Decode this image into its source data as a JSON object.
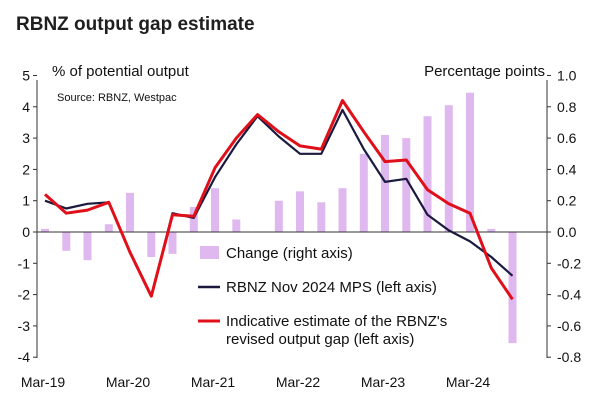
{
  "chart_data": {
    "type": "bar+line",
    "title": "RBNZ output gap estimate",
    "ylabel_left": "% of potential output",
    "ylabel_right": "Percentage points",
    "source": "Source: RBNZ, Westpac",
    "left_axis": {
      "ylim": [
        -4,
        5
      ],
      "ticks": [
        "5",
        "4",
        "3",
        "2",
        "1",
        "0",
        "-1",
        "-2",
        "-3",
        "-4"
      ]
    },
    "right_axis": {
      "ylim": [
        -0.8,
        1.0
      ],
      "ticks": [
        "1.0",
        "0.8",
        "0.6",
        "0.4",
        "0.2",
        "0.0",
        "-0.2",
        "-0.4",
        "-0.6",
        "-0.8"
      ]
    },
    "x_tick_labels": [
      {
        "label": "Mar-19",
        "index": 0
      },
      {
        "label": "Mar-20",
        "index": 4
      },
      {
        "label": "Mar-21",
        "index": 8
      },
      {
        "label": "Mar-22",
        "index": 12
      },
      {
        "label": "Mar-23",
        "index": 16
      },
      {
        "label": "Mar-24",
        "index": 20
      }
    ],
    "quarters": 23,
    "series": [
      {
        "name": "Change (right axis)",
        "kind": "bar",
        "axis": "right",
        "color": "#e0b8f0",
        "values": [
          0.02,
          -0.12,
          -0.18,
          0.05,
          0.25,
          -0.16,
          -0.14,
          0.16,
          0.28,
          0.08,
          0,
          0.2,
          0.26,
          0.19,
          0.28,
          0.5,
          0.62,
          0.6,
          0.74,
          0.81,
          0.89,
          0.02,
          -0.71
        ]
      },
      {
        "name": "RBNZ Nov 2024 MPS (left axis)",
        "kind": "line",
        "axis": "left",
        "color": "#1a1a3e",
        "values": [
          1.0,
          0.75,
          0.9,
          0.95,
          -0.65,
          -2.05,
          0.6,
          0.45,
          1.75,
          2.8,
          3.7,
          3.05,
          2.5,
          2.5,
          3.9,
          2.65,
          1.6,
          1.7,
          0.55,
          0.05,
          -0.3,
          -0.8,
          -1.4
        ]
      },
      {
        "name": "Indicative estimate of the RBNZ's revised output gap (left axis)",
        "kind": "line",
        "axis": "left",
        "color": "#e0101a",
        "values": [
          1.2,
          0.6,
          0.7,
          0.95,
          -0.65,
          -2.05,
          0.55,
          0.5,
          2.05,
          3.0,
          3.75,
          3.2,
          2.75,
          2.65,
          4.2,
          3.2,
          2.25,
          2.3,
          1.35,
          0.9,
          0.6,
          -1.15,
          -2.15
        ]
      }
    ],
    "legend_placement": "bottom-center",
    "grid": false
  }
}
